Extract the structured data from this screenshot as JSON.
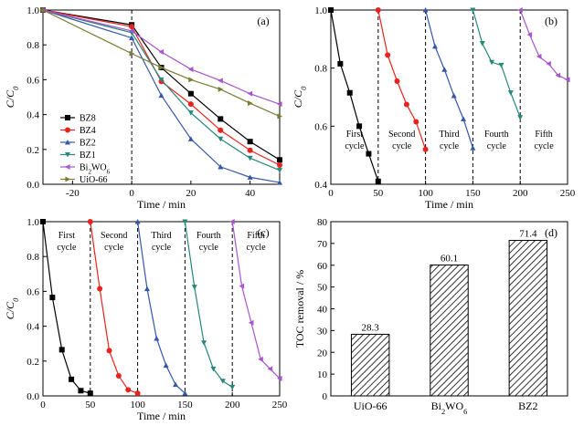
{
  "chart_data": [
    {
      "id": "a",
      "type": "line",
      "panel_label": "(a)",
      "xlabel": "Time / min",
      "ylabel": "C/C",
      "ylabel_sub": "0",
      "xlim": [
        -30,
        50
      ],
      "ylim": [
        0,
        1.0
      ],
      "xticks": [
        -20,
        0,
        20,
        40
      ],
      "yticks": [
        0,
        0.2,
        0.4,
        0.6,
        0.8,
        1.0
      ],
      "ytick_labels": [
        "0.0",
        "0.2",
        "0.4",
        "0.6",
        "0.8",
        "1.0"
      ],
      "vlines": [
        0
      ],
      "series": [
        {
          "name": "BZ8",
          "marker": "square",
          "color": "#000000",
          "x": [
            -30,
            0,
            10,
            20,
            30,
            40,
            50
          ],
          "y": [
            1.0,
            0.915,
            0.67,
            0.52,
            0.375,
            0.245,
            0.14
          ]
        },
        {
          "name": "BZ4",
          "marker": "circle",
          "color": "#e8231f",
          "x": [
            -30,
            0,
            10,
            20,
            30,
            40,
            50
          ],
          "y": [
            1.0,
            0.905,
            0.59,
            0.46,
            0.31,
            0.195,
            0.11
          ]
        },
        {
          "name": "BZ2",
          "marker": "triangle-up",
          "color": "#3656a8",
          "x": [
            -30,
            0,
            10,
            20,
            30,
            40,
            50
          ],
          "y": [
            1.0,
            0.84,
            0.51,
            0.26,
            0.1,
            0.04,
            0.01
          ]
        },
        {
          "name": "BZ1",
          "marker": "triangle-down",
          "color": "#26877b",
          "x": [
            -30,
            0,
            10,
            20,
            30,
            40,
            50
          ],
          "y": [
            1.0,
            0.87,
            0.6,
            0.41,
            0.26,
            0.15,
            0.08
          ]
        },
        {
          "name": "Bi",
          "name_parts": [
            "Bi",
            "2",
            "WO",
            "6"
          ],
          "marker": "triangle-left",
          "color": "#a855c9",
          "x": [
            -30,
            0,
            10,
            20,
            30,
            40,
            50
          ],
          "y": [
            1.0,
            0.88,
            0.76,
            0.66,
            0.595,
            0.52,
            0.46
          ]
        },
        {
          "name": "UiO-66",
          "marker": "triangle-right",
          "color": "#7a7a34",
          "x": [
            -30,
            0,
            10,
            20,
            30,
            40,
            50
          ],
          "y": [
            1.0,
            0.75,
            0.67,
            0.6,
            0.545,
            0.465,
            0.39
          ]
        }
      ]
    },
    {
      "id": "b",
      "type": "line",
      "panel_label": "(b)",
      "xlabel": "Time / min",
      "ylabel": "C/C",
      "ylabel_sub": "0",
      "xlim": [
        0,
        250
      ],
      "ylim": [
        0.4,
        1.0
      ],
      "xticks": [
        0,
        50,
        100,
        150,
        200,
        250
      ],
      "yticks": [
        0.4,
        0.6,
        0.8,
        1.0
      ],
      "ytick_labels": [
        "0.4",
        "0.6",
        "0.8",
        "1.0"
      ],
      "vlines": [
        50,
        100,
        150,
        200
      ],
      "cycle_labels": [
        {
          "x": 25,
          "lines": [
            "First",
            "cycle"
          ]
        },
        {
          "x": 75,
          "lines": [
            "Second",
            "cycle"
          ]
        },
        {
          "x": 125,
          "lines": [
            "Third",
            "cycle"
          ]
        },
        {
          "x": 175,
          "lines": [
            "Fourth",
            "cycle"
          ]
        },
        {
          "x": 225,
          "lines": [
            "Fifth",
            "cycle"
          ]
        }
      ],
      "series": [
        {
          "name": "First cycle",
          "marker": "square",
          "color": "#000000",
          "x": [
            0,
            10,
            20,
            30,
            40,
            50
          ],
          "y": [
            1.0,
            0.815,
            0.715,
            0.6,
            0.505,
            0.41
          ]
        },
        {
          "name": "Second cycle",
          "marker": "circle",
          "color": "#e8231f",
          "x": [
            50,
            60,
            70,
            80,
            90,
            100
          ],
          "y": [
            1.0,
            0.845,
            0.755,
            0.675,
            0.615,
            0.52
          ]
        },
        {
          "name": "Third cycle",
          "marker": "triangle-up",
          "color": "#3656a8",
          "x": [
            100,
            110,
            120,
            130,
            140,
            150
          ],
          "y": [
            1.0,
            0.875,
            0.795,
            0.705,
            0.625,
            0.525
          ]
        },
        {
          "name": "Fourth cycle",
          "marker": "triangle-down",
          "color": "#26877b",
          "x": [
            150,
            160,
            170,
            180,
            190,
            200
          ],
          "y": [
            1.0,
            0.885,
            0.82,
            0.81,
            0.715,
            0.63
          ]
        },
        {
          "name": "Fifth cycle",
          "marker": "triangle-left",
          "color": "#a855c9",
          "x": [
            200,
            210,
            220,
            230,
            240,
            250
          ],
          "y": [
            1.0,
            0.915,
            0.84,
            0.815,
            0.775,
            0.76
          ]
        }
      ]
    },
    {
      "id": "c",
      "type": "line",
      "panel_label": "(c)",
      "xlabel": "Time / min",
      "ylabel": "C/C",
      "ylabel_sub": "0",
      "xlim": [
        0,
        250
      ],
      "ylim": [
        0,
        1.0
      ],
      "xticks": [
        0,
        50,
        100,
        150,
        200,
        250
      ],
      "yticks": [
        0,
        0.2,
        0.4,
        0.6,
        0.8,
        1.0
      ],
      "ytick_labels": [
        "0.0",
        "0.2",
        "0.4",
        "0.6",
        "0.8",
        "1.0"
      ],
      "vlines": [
        50,
        100,
        150,
        200
      ],
      "cycle_labels": [
        {
          "x": 25,
          "lines": [
            "First",
            "cycle"
          ]
        },
        {
          "x": 75,
          "lines": [
            "Second",
            "cycle"
          ]
        },
        {
          "x": 125,
          "lines": [
            "Third",
            "cycle"
          ]
        },
        {
          "x": 175,
          "lines": [
            "Fourth",
            "cycle"
          ]
        },
        {
          "x": 225,
          "lines": [
            "Fifth",
            "cycle"
          ]
        }
      ],
      "series": [
        {
          "name": "First cycle",
          "marker": "square",
          "color": "#000000",
          "x": [
            0,
            10,
            20,
            30,
            40,
            50
          ],
          "y": [
            1.0,
            0.565,
            0.265,
            0.095,
            0.03,
            0.015
          ]
        },
        {
          "name": "Second cycle",
          "marker": "circle",
          "color": "#e8231f",
          "x": [
            50,
            60,
            70,
            80,
            90,
            100
          ],
          "y": [
            1.0,
            0.615,
            0.26,
            0.115,
            0.035,
            0.015
          ]
        },
        {
          "name": "Third cycle",
          "marker": "triangle-up",
          "color": "#3656a8",
          "x": [
            100,
            110,
            120,
            130,
            140,
            150
          ],
          "y": [
            1.0,
            0.615,
            0.33,
            0.175,
            0.065,
            0.015
          ]
        },
        {
          "name": "Fourth cycle",
          "marker": "triangle-down",
          "color": "#26877b",
          "x": [
            150,
            160,
            170,
            180,
            190,
            200
          ],
          "y": [
            1.0,
            0.625,
            0.305,
            0.155,
            0.085,
            0.05
          ]
        },
        {
          "name": "Fifth cycle",
          "marker": "triangle-left",
          "color": "#a855c9",
          "x": [
            200,
            210,
            220,
            230,
            240,
            250
          ],
          "y": [
            1.0,
            0.63,
            0.42,
            0.21,
            0.155,
            0.1
          ]
        }
      ]
    },
    {
      "id": "d",
      "type": "bar",
      "panel_label": "(d)",
      "ylabel": "TOC removal / %",
      "ylim": [
        0,
        80
      ],
      "yticks": [
        0,
        10,
        20,
        30,
        40,
        50,
        60,
        70,
        80
      ],
      "categories": [
        "UiO-66",
        "Bi",
        "BZ2"
      ],
      "category_parts": [
        [
          "UiO-66"
        ],
        [
          "Bi",
          "2",
          "WO",
          "6"
        ],
        [
          "BZ2"
        ]
      ],
      "values": [
        28.3,
        60.1,
        71.4
      ],
      "value_labels": [
        "28.3",
        "60.1",
        "71.4"
      ],
      "fill": "hatched"
    }
  ]
}
